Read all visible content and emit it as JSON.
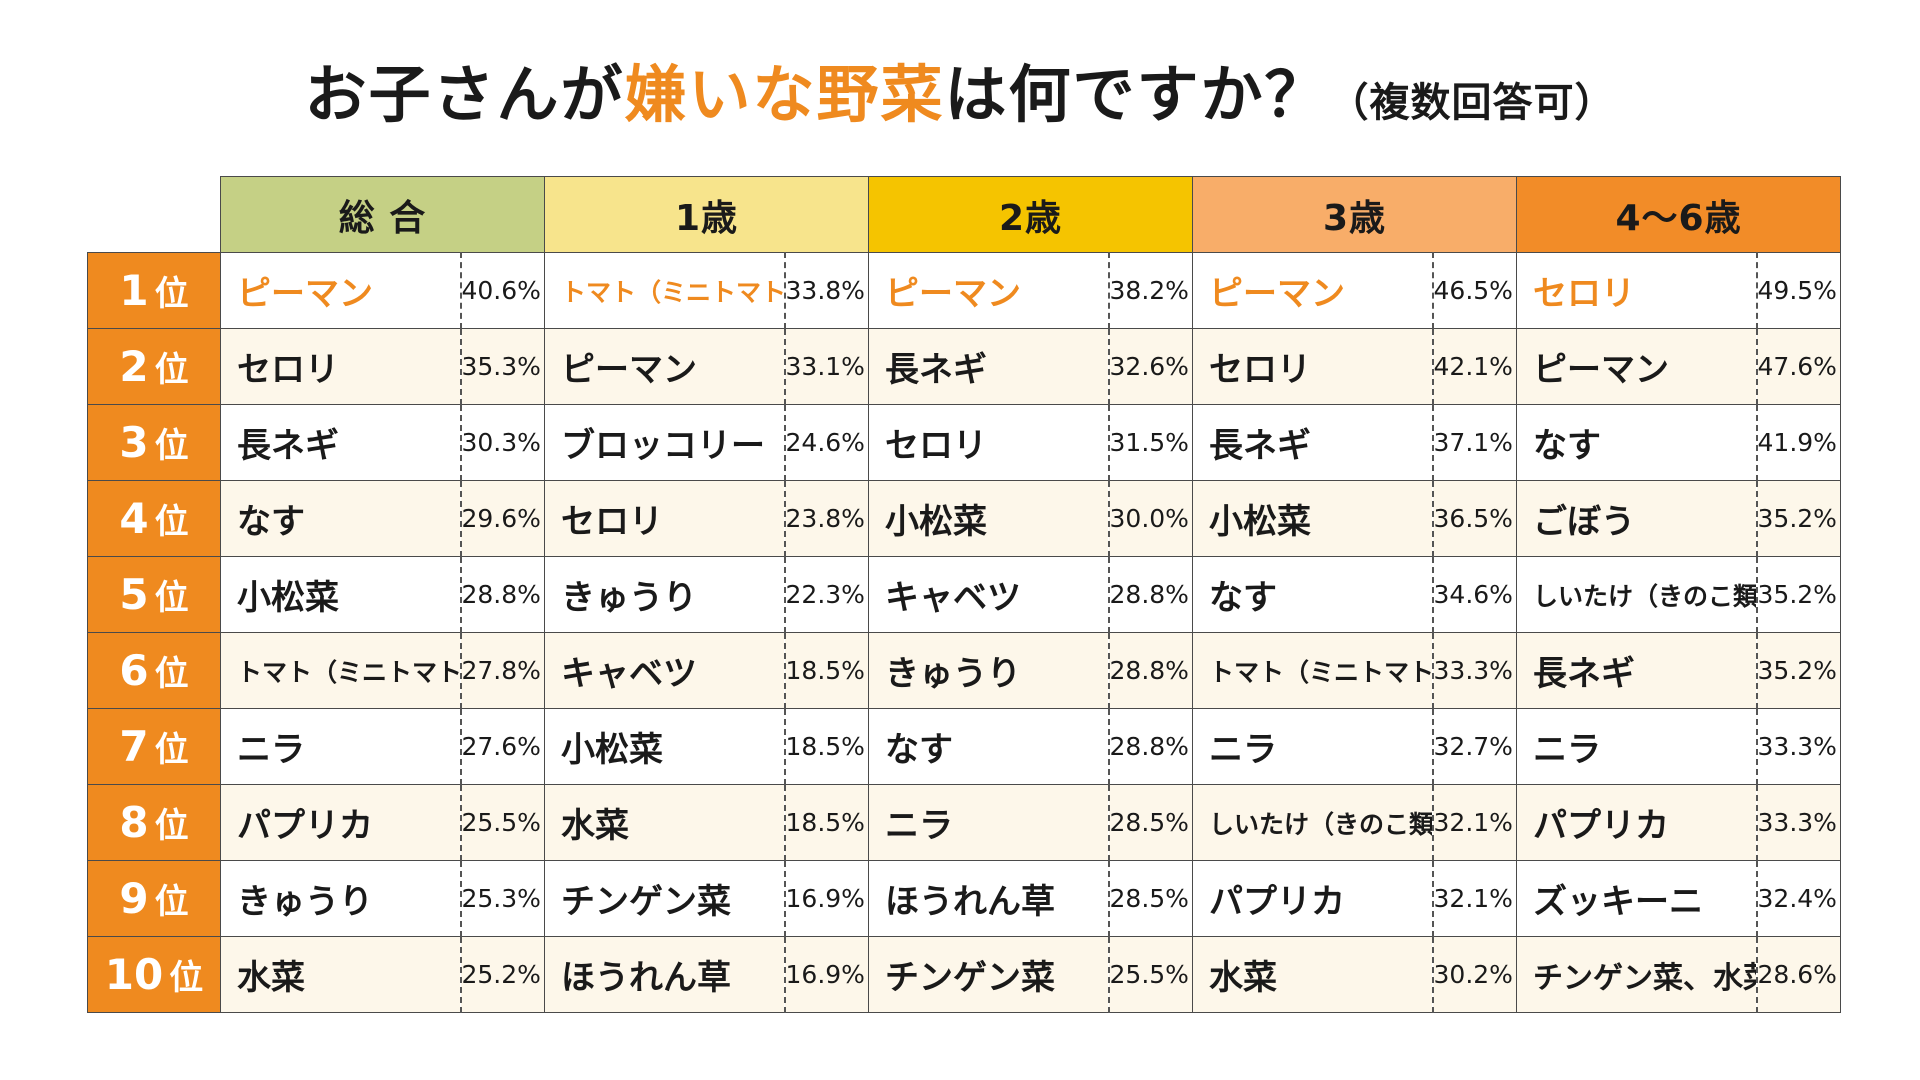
{
  "title": {
    "part1": "お子さんが",
    "highlight": "嫌いな野菜",
    "part2": "は何ですか？",
    "sub": "（複数回答可）"
  },
  "colors": {
    "accent_orange": "#ef8a1f",
    "header_colors": [
      "#c5d085",
      "#f7e48c",
      "#f5c400",
      "#f8ad69",
      "#f28c28"
    ]
  },
  "chart_data": {
    "type": "table",
    "title": "お子さんが嫌いな野菜は何ですか？（複数回答可）",
    "columns": [
      "総 合",
      "1歳",
      "2歳",
      "3歳",
      "4〜6歳"
    ],
    "ranks": [
      "1",
      "2",
      "3",
      "4",
      "5",
      "6",
      "7",
      "8",
      "9",
      "10"
    ],
    "rank_unit": "位",
    "rows": [
      [
        [
          "ピーマン",
          "40.6%"
        ],
        [
          "トマト（ミニトマト含む）",
          "33.8%"
        ],
        [
          "ピーマン",
          "38.2%"
        ],
        [
          "ピーマン",
          "46.5%"
        ],
        [
          "セロリ",
          "49.5%"
        ]
      ],
      [
        [
          "セロリ",
          "35.3%"
        ],
        [
          "ピーマン",
          "33.1%"
        ],
        [
          "長ネギ",
          "32.6%"
        ],
        [
          "セロリ",
          "42.1%"
        ],
        [
          "ピーマン",
          "47.6%"
        ]
      ],
      [
        [
          "長ネギ",
          "30.3%"
        ],
        [
          "ブロッコリー",
          "24.6%"
        ],
        [
          "セロリ",
          "31.5%"
        ],
        [
          "長ネギ",
          "37.1%"
        ],
        [
          "なす",
          "41.9%"
        ]
      ],
      [
        [
          "なす",
          "29.6%"
        ],
        [
          "セロリ",
          "23.8%"
        ],
        [
          "小松菜",
          "30.0%"
        ],
        [
          "小松菜",
          "36.5%"
        ],
        [
          "ごぼう",
          "35.2%"
        ]
      ],
      [
        [
          "小松菜",
          "28.8%"
        ],
        [
          "きゅうり",
          "22.3%"
        ],
        [
          "キャベツ",
          "28.8%"
        ],
        [
          "なす",
          "34.6%"
        ],
        [
          "しいたけ（きのこ類）",
          "35.2%"
        ]
      ],
      [
        [
          "トマト（ミニトマト含む）",
          "27.8%"
        ],
        [
          "キャベツ",
          "18.5%"
        ],
        [
          "きゅうり",
          "28.8%"
        ],
        [
          "トマト（ミニトマト含む）",
          "33.3%"
        ],
        [
          "長ネギ",
          "35.2%"
        ]
      ],
      [
        [
          "ニラ",
          "27.6%"
        ],
        [
          "小松菜",
          "18.5%"
        ],
        [
          "なす",
          "28.8%"
        ],
        [
          "ニラ",
          "32.7%"
        ],
        [
          "ニラ",
          "33.3%"
        ]
      ],
      [
        [
          "パプリカ",
          "25.5%"
        ],
        [
          "水菜",
          "18.5%"
        ],
        [
          "ニラ",
          "28.5%"
        ],
        [
          "しいたけ（きのこ類）",
          "32.1%"
        ],
        [
          "パプリカ",
          "33.3%"
        ]
      ],
      [
        [
          "きゅうり",
          "25.3%"
        ],
        [
          "チンゲン菜",
          "16.9%"
        ],
        [
          "ほうれん草",
          "28.5%"
        ],
        [
          "パプリカ",
          "32.1%"
        ],
        [
          "ズッキーニ",
          "32.4%"
        ]
      ],
      [
        [
          "水菜",
          "25.2%"
        ],
        [
          "ほうれん草",
          "16.9%"
        ],
        [
          "チンゲン菜",
          "25.5%"
        ],
        [
          "水菜",
          "30.2%"
        ],
        [
          "チンゲン菜、水菜",
          "28.6%"
        ]
      ]
    ]
  }
}
